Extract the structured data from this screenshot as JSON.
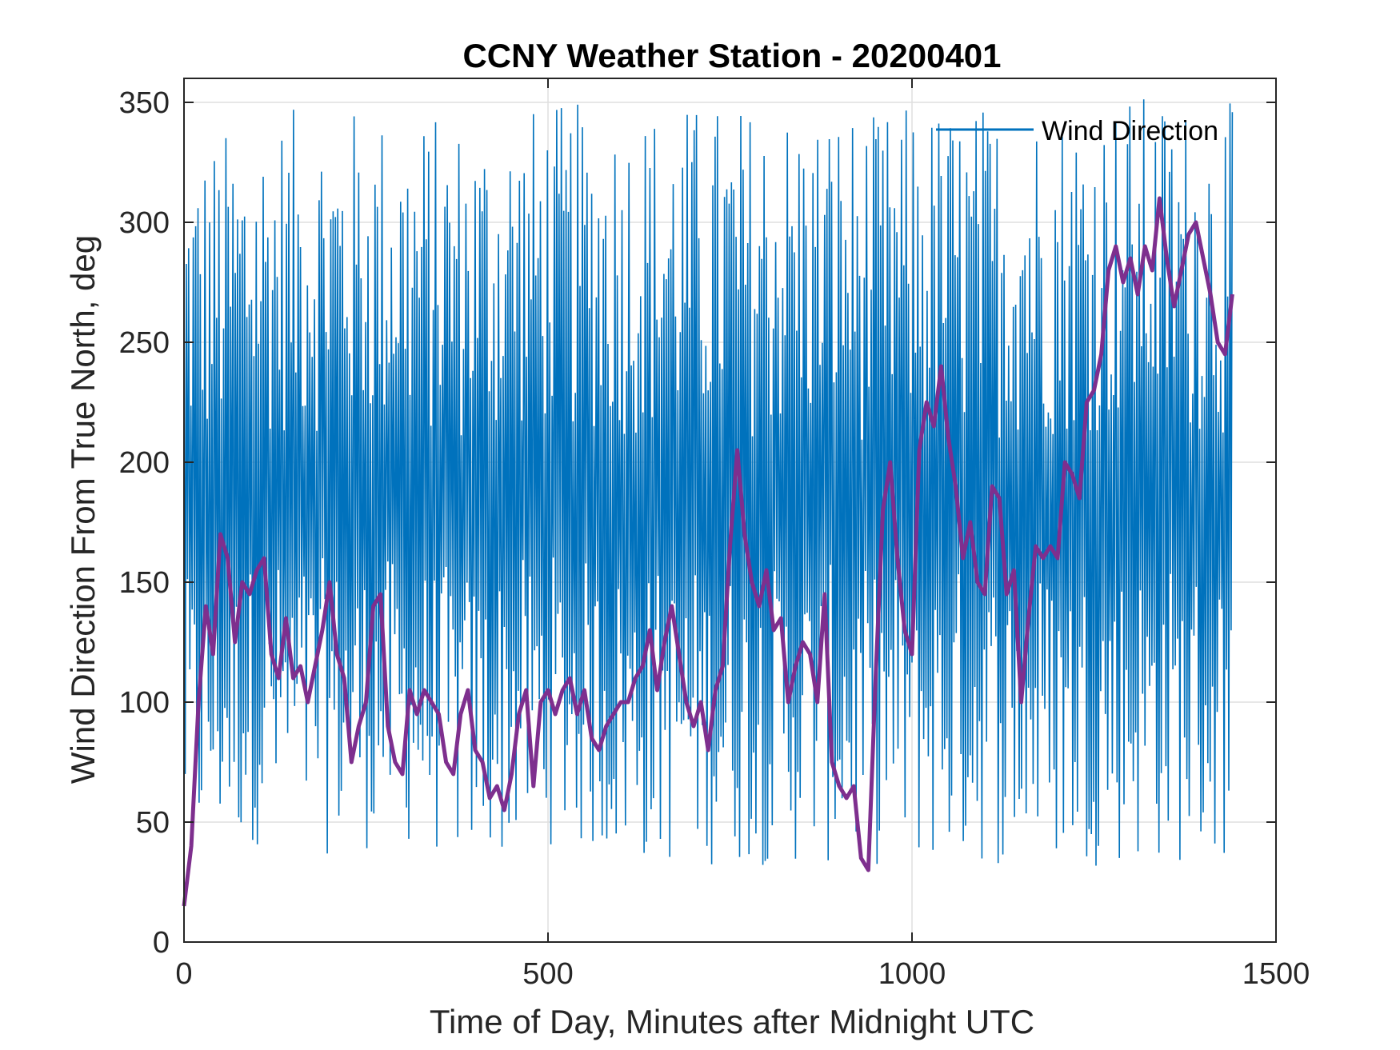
{
  "chart_data": {
    "type": "line",
    "title": "CCNY Weather Station - 20200401",
    "xlabel": "Time of Day, Minutes after Midnight UTC",
    "ylabel": "Wind Direction From True North, deg",
    "xlim": [
      0,
      1500
    ],
    "ylim": [
      0,
      360
    ],
    "xticks": [
      0,
      500,
      1000,
      1500
    ],
    "yticks": [
      0,
      50,
      100,
      150,
      200,
      250,
      300,
      350
    ],
    "grid": true,
    "legend": {
      "location": "top-right",
      "entries": [
        "Wind Direction"
      ]
    },
    "series": [
      {
        "name": "Wind Direction",
        "color": "#0072BD",
        "note_x_span": [
          0,
          1440
        ],
        "envelope": [
          [
            0,
            5,
            330
          ],
          [
            100,
            10,
            345
          ],
          [
            200,
            5,
            350
          ],
          [
            300,
            10,
            345
          ],
          [
            400,
            0,
            345
          ],
          [
            500,
            10,
            350
          ],
          [
            600,
            0,
            350
          ],
          [
            700,
            0,
            350
          ],
          [
            800,
            0,
            350
          ],
          [
            900,
            0,
            350
          ],
          [
            950,
            0,
            345
          ],
          [
            1000,
            0,
            350
          ],
          [
            1100,
            0,
            350
          ],
          [
            1200,
            0,
            350
          ],
          [
            1300,
            0,
            355
          ],
          [
            1440,
            0,
            350
          ]
        ]
      },
      {
        "color": "#7E2F8E",
        "points": [
          [
            0,
            15
          ],
          [
            10,
            40
          ],
          [
            20,
            100
          ],
          [
            30,
            140
          ],
          [
            40,
            120
          ],
          [
            50,
            170
          ],
          [
            60,
            160
          ],
          [
            70,
            125
          ],
          [
            80,
            150
          ],
          [
            90,
            145
          ],
          [
            100,
            155
          ],
          [
            110,
            160
          ],
          [
            120,
            120
          ],
          [
            130,
            110
          ],
          [
            140,
            135
          ],
          [
            150,
            110
          ],
          [
            160,
            115
          ],
          [
            170,
            100
          ],
          [
            180,
            115
          ],
          [
            190,
            130
          ],
          [
            200,
            150
          ],
          [
            210,
            120
          ],
          [
            220,
            110
          ],
          [
            230,
            75
          ],
          [
            240,
            90
          ],
          [
            250,
            100
          ],
          [
            260,
            140
          ],
          [
            270,
            145
          ],
          [
            280,
            90
          ],
          [
            290,
            75
          ],
          [
            300,
            70
          ],
          [
            310,
            105
          ],
          [
            320,
            95
          ],
          [
            330,
            105
          ],
          [
            340,
            100
          ],
          [
            350,
            95
          ],
          [
            360,
            75
          ],
          [
            370,
            70
          ],
          [
            380,
            95
          ],
          [
            390,
            105
          ],
          [
            400,
            80
          ],
          [
            410,
            75
          ],
          [
            420,
            60
          ],
          [
            430,
            65
          ],
          [
            440,
            55
          ],
          [
            450,
            70
          ],
          [
            460,
            95
          ],
          [
            470,
            105
          ],
          [
            480,
            65
          ],
          [
            490,
            100
          ],
          [
            500,
            105
          ],
          [
            510,
            95
          ],
          [
            520,
            105
          ],
          [
            530,
            110
          ],
          [
            540,
            95
          ],
          [
            550,
            105
          ],
          [
            560,
            85
          ],
          [
            570,
            80
          ],
          [
            580,
            90
          ],
          [
            590,
            95
          ],
          [
            600,
            100
          ],
          [
            610,
            100
          ],
          [
            620,
            110
          ],
          [
            630,
            115
          ],
          [
            640,
            130
          ],
          [
            650,
            105
          ],
          [
            660,
            125
          ],
          [
            670,
            140
          ],
          [
            680,
            120
          ],
          [
            690,
            100
          ],
          [
            700,
            90
          ],
          [
            710,
            100
          ],
          [
            720,
            80
          ],
          [
            730,
            105
          ],
          [
            740,
            115
          ],
          [
            750,
            165
          ],
          [
            760,
            205
          ],
          [
            770,
            170
          ],
          [
            780,
            150
          ],
          [
            790,
            140
          ],
          [
            800,
            155
          ],
          [
            810,
            130
          ],
          [
            820,
            135
          ],
          [
            830,
            100
          ],
          [
            840,
            115
          ],
          [
            850,
            125
          ],
          [
            860,
            120
          ],
          [
            870,
            100
          ],
          [
            880,
            145
          ],
          [
            890,
            75
          ],
          [
            900,
            65
          ],
          [
            910,
            60
          ],
          [
            920,
            65
          ],
          [
            930,
            35
          ],
          [
            940,
            30
          ],
          [
            950,
            110
          ],
          [
            960,
            180
          ],
          [
            970,
            200
          ],
          [
            980,
            160
          ],
          [
            990,
            130
          ],
          [
            1000,
            120
          ],
          [
            1010,
            205
          ],
          [
            1020,
            225
          ],
          [
            1030,
            215
          ],
          [
            1040,
            240
          ],
          [
            1050,
            210
          ],
          [
            1060,
            190
          ],
          [
            1070,
            160
          ],
          [
            1080,
            175
          ],
          [
            1090,
            150
          ],
          [
            1100,
            145
          ],
          [
            1110,
            190
          ],
          [
            1120,
            185
          ],
          [
            1130,
            145
          ],
          [
            1140,
            155
          ],
          [
            1150,
            100
          ],
          [
            1160,
            135
          ],
          [
            1170,
            165
          ],
          [
            1180,
            160
          ],
          [
            1190,
            165
          ],
          [
            1200,
            160
          ],
          [
            1210,
            200
          ],
          [
            1220,
            195
          ],
          [
            1230,
            185
          ],
          [
            1240,
            225
          ],
          [
            1250,
            230
          ],
          [
            1260,
            245
          ],
          [
            1270,
            280
          ],
          [
            1280,
            290
          ],
          [
            1290,
            275
          ],
          [
            1300,
            285
          ],
          [
            1310,
            270
          ],
          [
            1320,
            290
          ],
          [
            1330,
            280
          ],
          [
            1340,
            310
          ],
          [
            1350,
            285
          ],
          [
            1360,
            265
          ],
          [
            1370,
            280
          ],
          [
            1380,
            295
          ],
          [
            1390,
            300
          ],
          [
            1400,
            285
          ],
          [
            1410,
            270
          ],
          [
            1420,
            250
          ],
          [
            1430,
            245
          ],
          [
            1440,
            270
          ]
        ]
      }
    ]
  }
}
